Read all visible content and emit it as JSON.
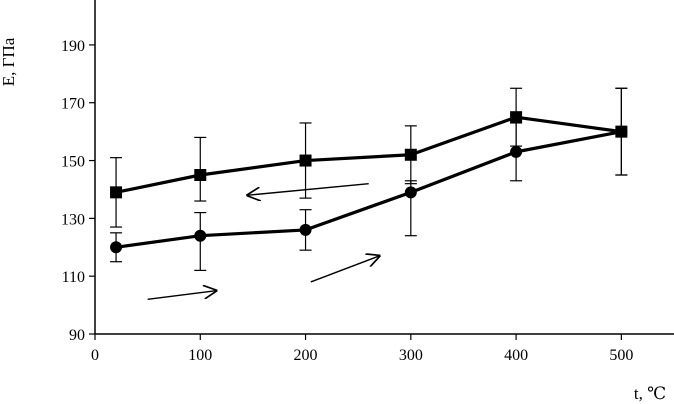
{
  "chart_data": {
    "type": "line",
    "xlabel": "t, ℃",
    "ylabel": "E, ГПа",
    "xlim": [
      0,
      550
    ],
    "ylim": [
      90,
      200
    ],
    "x_ticks": [
      0,
      100,
      200,
      300,
      400,
      500
    ],
    "y_ticks": [
      90,
      110,
      130,
      150,
      170,
      190
    ],
    "x_tick_labels": [
      "0",
      "100",
      "200",
      "300",
      "400",
      "500"
    ],
    "y_tick_labels": [
      "90",
      "110",
      "130",
      "150",
      "170",
      "190"
    ],
    "grid": false,
    "legend": "none",
    "series": [
      {
        "marker": "square",
        "color": "#000000",
        "points": [
          {
            "x": 20,
            "y": 139,
            "err_low": 127,
            "err_high": 151
          },
          {
            "x": 100,
            "y": 145,
            "err_low": 136,
            "err_high": 158
          },
          {
            "x": 200,
            "y": 150,
            "err_low": 137,
            "err_high": 163
          },
          {
            "x": 300,
            "y": 152,
            "err_low": 142,
            "err_high": 162
          },
          {
            "x": 400,
            "y": 165,
            "err_low": 155,
            "err_high": 175
          },
          {
            "x": 500,
            "y": 160,
            "err_low": 145,
            "err_high": 175
          }
        ]
      },
      {
        "marker": "circle",
        "color": "#000000",
        "points": [
          {
            "x": 20,
            "y": 120,
            "err_low": 115,
            "err_high": 125
          },
          {
            "x": 100,
            "y": 124,
            "err_low": 112,
            "err_high": 132
          },
          {
            "x": 200,
            "y": 126,
            "err_low": 119,
            "err_high": 133
          },
          {
            "x": 300,
            "y": 139,
            "err_low": 124,
            "err_high": 143
          },
          {
            "x": 400,
            "y": 153,
            "err_low": 143,
            "err_high": 163
          },
          {
            "x": 500,
            "y": 160,
            "err_low": 145,
            "err_high": 175
          }
        ]
      }
    ],
    "annotations": [
      {
        "type": "arrow",
        "direction": "right",
        "from": [
          50,
          102
        ],
        "to": [
          115,
          105
        ]
      },
      {
        "type": "arrow",
        "direction": "up-right",
        "from": [
          205,
          108
        ],
        "to": [
          270,
          117
        ]
      },
      {
        "type": "arrow",
        "direction": "left",
        "from": [
          260,
          142
        ],
        "to": [
          145,
          138
        ]
      }
    ]
  }
}
